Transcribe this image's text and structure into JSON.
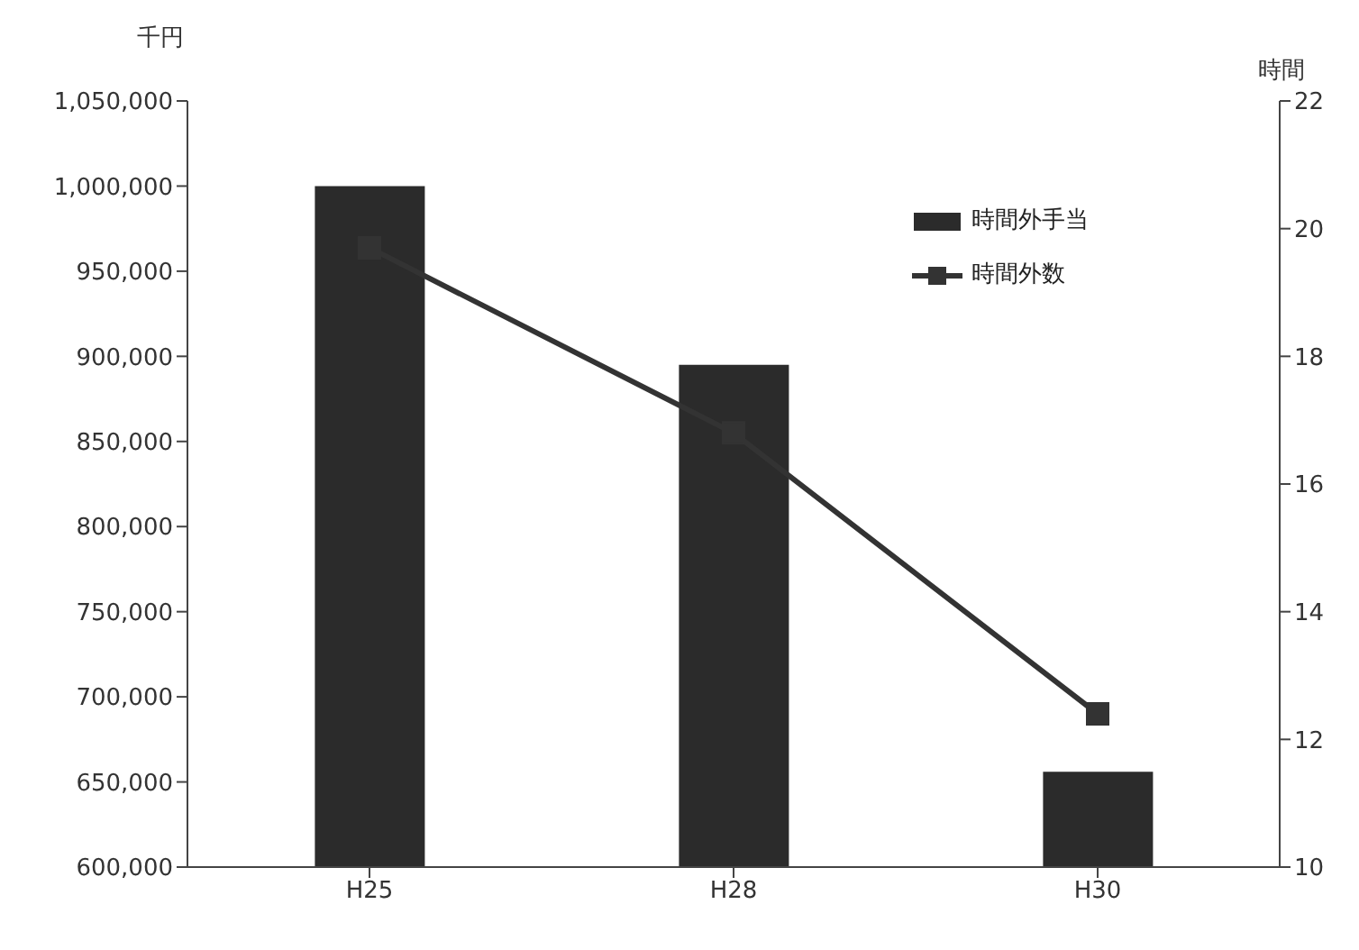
{
  "chart_data": {
    "type": "bar",
    "ylabel": "千円",
    "y2label": "時間",
    "categories": [
      "H25",
      "H28",
      "H30"
    ],
    "series": [
      {
        "name": "時間外手当",
        "color": "#2b2b2b",
        "values": [
          1000000,
          895000,
          656000
        ]
      },
      {
        "name": "時間外数",
        "type": "line",
        "axis": "y2",
        "color": "#333333",
        "values": [
          19.7,
          16.8,
          12.4
        ],
        "marker": "square"
      }
    ],
    "ylim": [
      600000,
      1050000
    ],
    "yticks": [
      {
        "value": 600000,
        "label": "600,000"
      },
      {
        "value": 650000,
        "label": "650,000"
      },
      {
        "value": 700000,
        "label": "700,000"
      },
      {
        "value": 750000,
        "label": "750,000"
      },
      {
        "value": 800000,
        "label": "800,000"
      },
      {
        "value": 850000,
        "label": "850,000"
      },
      {
        "value": 900000,
        "label": "900,000"
      },
      {
        "value": 950000,
        "label": "950,000"
      },
      {
        "value": 1000000,
        "label": "1,000,000"
      },
      {
        "value": 1050000,
        "label": "1,050,000"
      }
    ],
    "y2lim": [
      10,
      22
    ],
    "y2ticks": [
      10,
      12,
      14,
      16,
      18,
      20,
      22
    ],
    "grid": false,
    "legend": "top right"
  }
}
